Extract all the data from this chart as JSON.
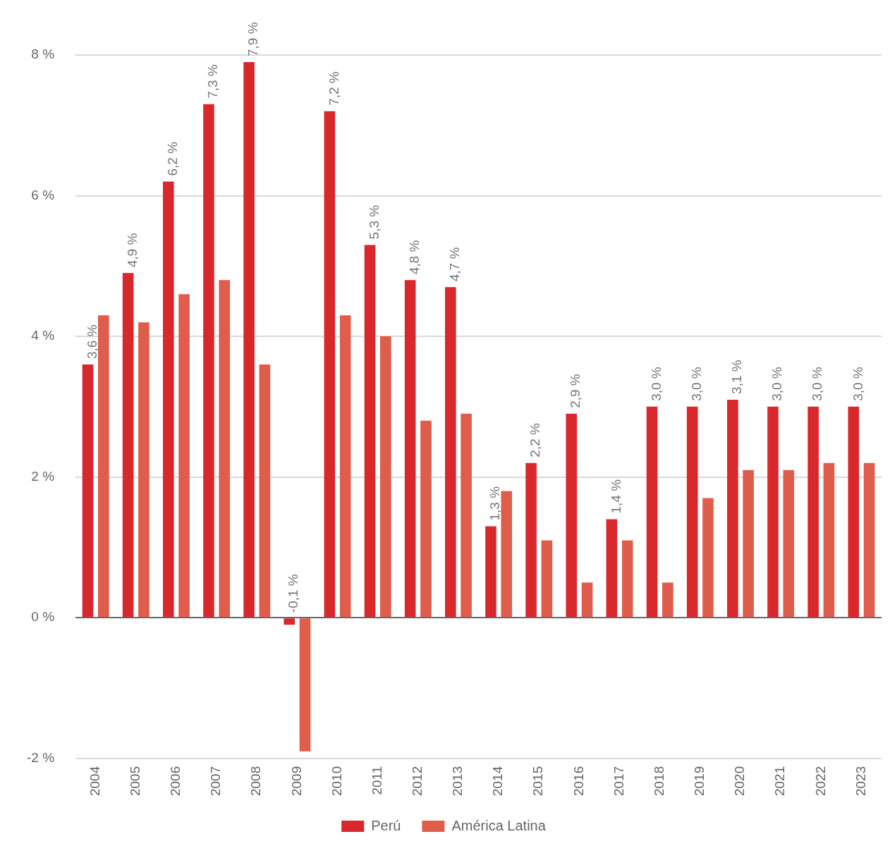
{
  "chart_data": {
    "type": "bar",
    "categories": [
      "2004",
      "2005",
      "2006",
      "2007",
      "2008",
      "2009",
      "2010",
      "2011",
      "2012",
      "2013",
      "2014",
      "2015",
      "2016",
      "2017",
      "2018",
      "2019",
      "2020",
      "2021",
      "2022",
      "2023"
    ],
    "series": [
      {
        "name": "Perú",
        "color": "#d9282c",
        "values": [
          3.6,
          4.9,
          6.2,
          7.3,
          7.9,
          -0.1,
          7.2,
          5.3,
          4.8,
          4.7,
          1.3,
          2.2,
          2.9,
          1.4,
          3.0,
          3.0,
          3.1,
          3.0,
          3.0,
          3.0
        ],
        "value_labels": [
          "3,6 %",
          "4,9 %",
          "6,2 %",
          "7,3 %",
          "7,9 %",
          "-0,1 %",
          "7,2 %",
          "5,3 %",
          "4,8 %",
          "4,7 %",
          "1,3 %",
          "2,2 %",
          "2,9 %",
          "1,4 %",
          "3,0 %",
          "3,0 %",
          "3,1 %",
          "3,0 %",
          "3,0 %",
          "3,0 %"
        ]
      },
      {
        "name": "América Latina",
        "color": "#e05c4b",
        "values": [
          4.3,
          4.2,
          4.6,
          4.8,
          3.6,
          -1.9,
          4.3,
          4.0,
          2.8,
          2.9,
          1.8,
          1.1,
          0.5,
          1.1,
          0.5,
          1.7,
          2.1,
          2.1,
          2.2,
          2.2
        ]
      }
    ],
    "ylim": [
      -2,
      8
    ],
    "yticks": [
      {
        "value": -2,
        "label": "-2 %"
      },
      {
        "value": 0,
        "label": "0 %"
      },
      {
        "value": 2,
        "label": "2 %"
      },
      {
        "value": 4,
        "label": "4 %"
      },
      {
        "value": 6,
        "label": "6 %"
      },
      {
        "value": 8,
        "label": "8 %"
      }
    ],
    "grid": "y",
    "legend": "bottom"
  }
}
